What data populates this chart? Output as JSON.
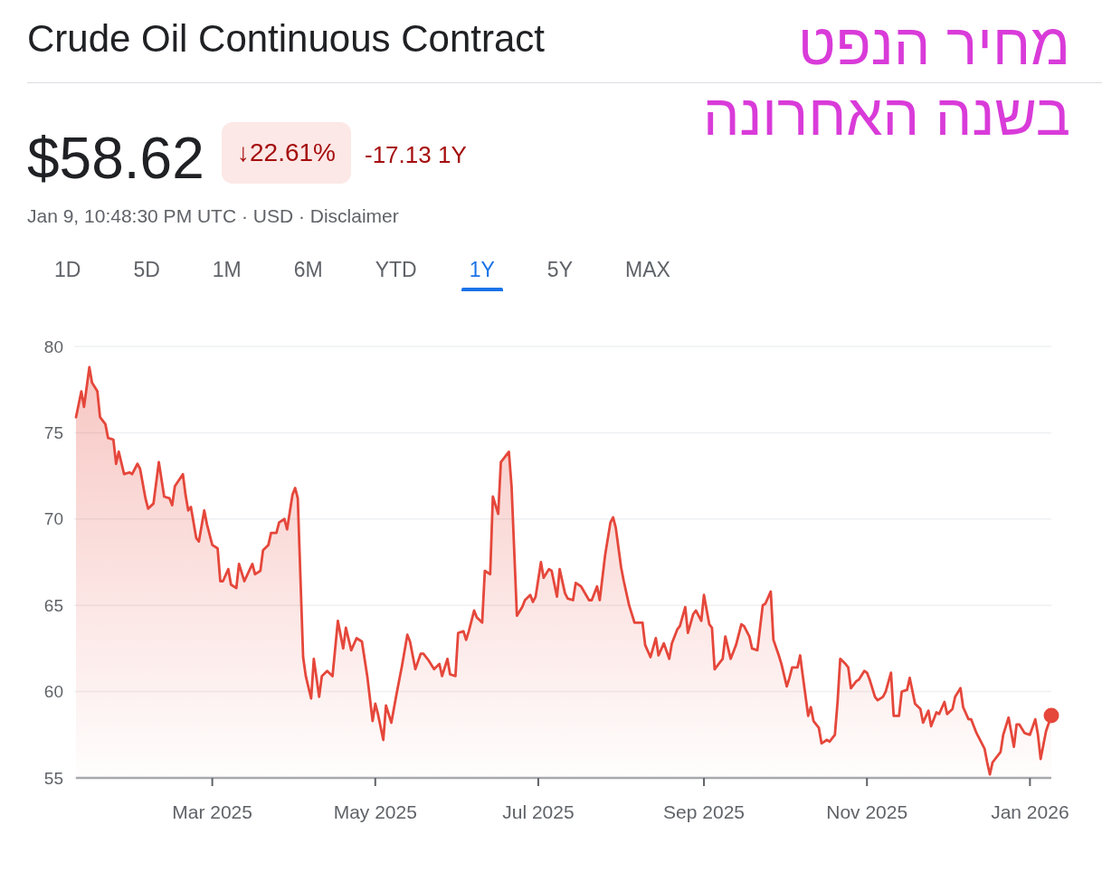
{
  "chart_data": {
    "type": "area",
    "title": "Crude Oil Continuous Contract",
    "subtitle": "מחיר הנפט בשנה האחרונה",
    "annotations": [
      "$58.62",
      "↓22.61%",
      "-17.13 1Y",
      "Jan 9, 10:48:30 PM UTC · USD · Disclaimer",
      "1D",
      "5D",
      "1M",
      "6M",
      "YTD",
      "1Y",
      "5Y",
      "MAX"
    ],
    "series": [
      {
        "color": "#e5473b",
        "x": [
          "2025-01-09",
          "2025-01-11",
          "2025-01-12",
          "2025-01-14",
          "2025-01-15",
          "2025-01-17",
          "2025-01-18",
          "2025-01-20",
          "2025-01-21",
          "2025-01-23",
          "2025-01-24",
          "2025-01-25",
          "2025-01-27",
          "2025-01-29",
          "2025-01-30",
          "2025-02-01",
          "2025-02-02",
          "2025-02-04",
          "2025-02-05",
          "2025-02-07",
          "2025-02-09",
          "2025-02-11",
          "2025-02-13",
          "2025-02-14",
          "2025-02-15",
          "2025-02-18",
          "2025-02-19",
          "2025-02-20",
          "2025-02-21",
          "2025-02-23",
          "2025-02-24",
          "2025-02-26",
          "2025-02-27",
          "2025-03-01",
          "2025-03-03",
          "2025-03-04",
          "2025-03-05",
          "2025-03-07",
          "2025-03-08",
          "2025-03-10",
          "2025-03-11",
          "2025-03-13",
          "2025-03-16",
          "2025-03-17",
          "2025-03-19",
          "2025-03-20",
          "2025-03-22",
          "2025-03-23",
          "2025-03-25",
          "2025-03-26",
          "2025-03-28",
          "2025-03-29",
          "2025-03-31",
          "2025-04-01",
          "2025-04-02",
          "2025-04-04",
          "2025-04-05",
          "2025-04-07",
          "2025-04-08",
          "2025-04-10",
          "2025-04-11",
          "2025-04-13",
          "2025-04-15",
          "2025-04-17",
          "2025-04-19",
          "2025-04-20",
          "2025-04-22",
          "2025-04-24",
          "2025-04-26",
          "2025-04-28",
          "2025-04-30",
          "2025-05-01",
          "2025-05-02",
          "2025-05-04",
          "2025-05-05",
          "2025-05-07",
          "2025-05-09",
          "2025-05-11",
          "2025-05-13",
          "2025-05-14",
          "2025-05-16",
          "2025-05-18",
          "2025-05-19",
          "2025-05-21",
          "2025-05-23",
          "2025-05-25",
          "2025-05-26",
          "2025-05-28",
          "2025-05-29",
          "2025-05-31",
          "2025-06-01",
          "2025-06-03",
          "2025-06-04",
          "2025-06-05",
          "2025-06-07",
          "2025-06-08",
          "2025-06-10",
          "2025-06-11",
          "2025-06-13",
          "2025-06-14",
          "2025-06-16",
          "2025-06-17",
          "2025-06-18",
          "2025-06-20",
          "2025-06-21",
          "2025-06-23",
          "2025-06-25",
          "2025-06-26",
          "2025-06-28",
          "2025-06-29",
          "2025-06-30",
          "2025-07-02",
          "2025-07-03",
          "2025-07-05",
          "2025-07-06",
          "2025-07-08",
          "2025-07-09",
          "2025-07-11",
          "2025-07-12",
          "2025-07-14",
          "2025-07-15",
          "2025-07-17",
          "2025-07-20",
          "2025-07-21",
          "2025-07-23",
          "2025-07-24",
          "2025-07-26",
          "2025-07-28",
          "2025-07-29",
          "2025-07-30",
          "2025-08-01",
          "2025-08-02",
          "2025-08-04",
          "2025-08-06",
          "2025-08-09",
          "2025-08-10",
          "2025-08-12",
          "2025-08-14",
          "2025-08-15",
          "2025-08-17",
          "2025-08-19",
          "2025-08-20",
          "2025-08-22",
          "2025-08-23",
          "2025-08-25",
          "2025-08-26",
          "2025-08-28",
          "2025-08-29",
          "2025-08-31",
          "2025-09-01",
          "2025-09-03",
          "2025-09-04",
          "2025-09-05",
          "2025-09-07",
          "2025-09-08",
          "2025-09-09",
          "2025-09-11",
          "2025-09-12",
          "2025-09-13",
          "2025-09-15",
          "2025-09-16",
          "2025-09-18",
          "2025-09-19",
          "2025-09-21",
          "2025-09-23",
          "2025-09-24",
          "2025-09-26",
          "2025-09-27",
          "2025-09-29",
          "2025-09-30",
          "2025-10-02",
          "2025-10-03",
          "2025-10-04",
          "2025-10-06",
          "2025-10-07",
          "2025-10-08",
          "2025-10-10",
          "2025-10-11",
          "2025-10-12",
          "2025-10-14",
          "2025-10-15",
          "2025-10-17",
          "2025-10-18",
          "2025-10-20",
          "2025-10-21",
          "2025-10-22",
          "2025-10-24",
          "2025-10-25",
          "2025-10-26",
          "2025-10-28",
          "2025-10-29",
          "2025-10-31",
          "2025-11-01",
          "2025-11-02",
          "2025-11-04",
          "2025-11-05",
          "2025-11-07",
          "2025-11-08",
          "2025-11-10",
          "2025-11-11",
          "2025-11-13",
          "2025-11-14",
          "2025-11-16",
          "2025-11-17",
          "2025-11-19",
          "2025-11-21",
          "2025-11-22",
          "2025-11-24",
          "2025-11-25",
          "2025-11-27",
          "2025-11-28",
          "2025-11-30",
          "2025-12-01",
          "2025-12-03",
          "2025-12-04",
          "2025-12-06",
          "2025-12-07",
          "2025-12-09",
          "2025-12-10",
          "2025-12-12",
          "2025-12-13",
          "2025-12-15",
          "2025-12-16",
          "2025-12-17",
          "2025-12-18",
          "2025-12-19",
          "2025-12-21",
          "2025-12-22",
          "2025-12-24",
          "2025-12-26",
          "2025-12-27",
          "2025-12-28",
          "2025-12-30",
          "2026-01-01",
          "2026-01-03",
          "2026-01-04",
          "2026-01-05",
          "2026-01-07",
          "2026-01-09"
        ],
        "values": [
          75.9,
          77.4,
          76.5,
          78.8,
          77.9,
          77.4,
          75.9,
          75.5,
          74.7,
          74.6,
          73.2,
          73.9,
          72.6,
          72.7,
          72.6,
          73.2,
          72.9,
          71.2,
          70.6,
          70.9,
          73.3,
          71.3,
          71.2,
          70.8,
          71.9,
          72.6,
          71.4,
          70.5,
          70.7,
          68.9,
          68.7,
          70.5,
          69.7,
          68.5,
          68.3,
          66.4,
          66.4,
          67.1,
          66.2,
          66.0,
          67.4,
          66.4,
          67.4,
          66.8,
          67.0,
          68.2,
          68.5,
          69.2,
          69.2,
          69.8,
          70.0,
          69.4,
          71.4,
          71.8,
          71.2,
          62.0,
          60.9,
          59.6,
          61.9,
          59.7,
          60.9,
          61.2,
          60.9,
          64.1,
          62.5,
          63.7,
          62.4,
          63.1,
          62.9,
          60.9,
          58.3,
          59.3,
          58.7,
          57.2,
          59.2,
          58.2,
          59.9,
          61.5,
          63.3,
          62.9,
          61.3,
          62.2,
          62.2,
          61.8,
          61.3,
          61.6,
          60.9,
          61.9,
          61.0,
          60.9,
          63.4,
          63.5,
          63.0,
          63.5,
          64.7,
          64.3,
          64.0,
          67.0,
          66.8,
          71.3,
          70.3,
          73.3,
          73.5,
          73.9,
          71.9,
          64.4,
          64.9,
          65.3,
          65.6,
          65.2,
          65.5,
          67.5,
          66.6,
          67.1,
          67.0,
          65.5,
          67.1,
          65.7,
          65.4,
          65.3,
          66.3,
          66.1,
          65.3,
          65.3,
          66.1,
          65.3,
          67.9,
          69.8,
          70.1,
          69.5,
          67.2,
          66.4,
          65.0,
          64.0,
          64.0,
          62.7,
          62.0,
          63.1,
          62.1,
          62.8,
          61.9,
          62.8,
          63.6,
          63.8,
          64.9,
          63.4,
          64.5,
          64.7,
          64.1,
          65.6,
          63.9,
          63.7,
          61.3,
          61.7,
          61.9,
          63.2,
          61.9,
          62.3,
          62.7,
          63.9,
          63.8,
          63.2,
          62.5,
          62.4,
          65.0,
          65.1,
          65.8,
          63.0,
          62.1,
          61.6,
          60.3,
          60.8,
          61.4,
          61.4,
          62.1,
          60.9,
          58.6,
          59.1,
          58.3,
          57.9,
          57.0,
          57.2,
          57.1,
          57.5,
          59.4,
          61.9,
          61.6,
          61.4,
          60.2,
          60.6,
          60.7,
          61.2,
          61.1,
          60.7,
          59.7,
          59.5,
          59.7,
          60.0,
          61.1,
          58.6,
          58.6,
          60.0,
          60.1,
          60.8,
          59.3,
          59.0,
          58.2,
          58.9,
          58.0,
          58.8,
          58.7,
          59.4,
          58.7,
          59.0,
          59.7,
          60.2,
          59.1,
          58.4,
          58.4,
          57.6,
          57.3,
          56.7,
          55.9,
          55.2,
          55.9,
          56.1,
          56.5,
          57.5,
          58.5,
          56.8,
          58.1,
          58.1,
          57.6,
          57.5,
          58.4,
          57.5,
          56.1,
          57.7,
          58.62
        ]
      },
      {
        "type": "scatter",
        "color": "#e5473b",
        "x": [
          "2026-01-09"
        ],
        "values": [
          58.62
        ]
      }
    ],
    "xlim": [
      "2025-01-09",
      "2026-01-09"
    ],
    "xticks": [
      {
        "value": "2025-03-01",
        "label": "Mar 2025"
      },
      {
        "value": "2025-05-01",
        "label": "May 2025"
      },
      {
        "value": "2025-07-01",
        "label": "Jul 2025"
      },
      {
        "value": "2025-09-01",
        "label": "Sep 2025"
      },
      {
        "value": "2025-11-01",
        "label": "Nov 2025"
      },
      {
        "value": "2026-01-01",
        "label": "Jan 2026"
      }
    ],
    "ylim": [
      55,
      80
    ],
    "yticks": [
      55,
      60,
      65,
      70,
      75,
      80
    ],
    "grid": "y"
  }
}
